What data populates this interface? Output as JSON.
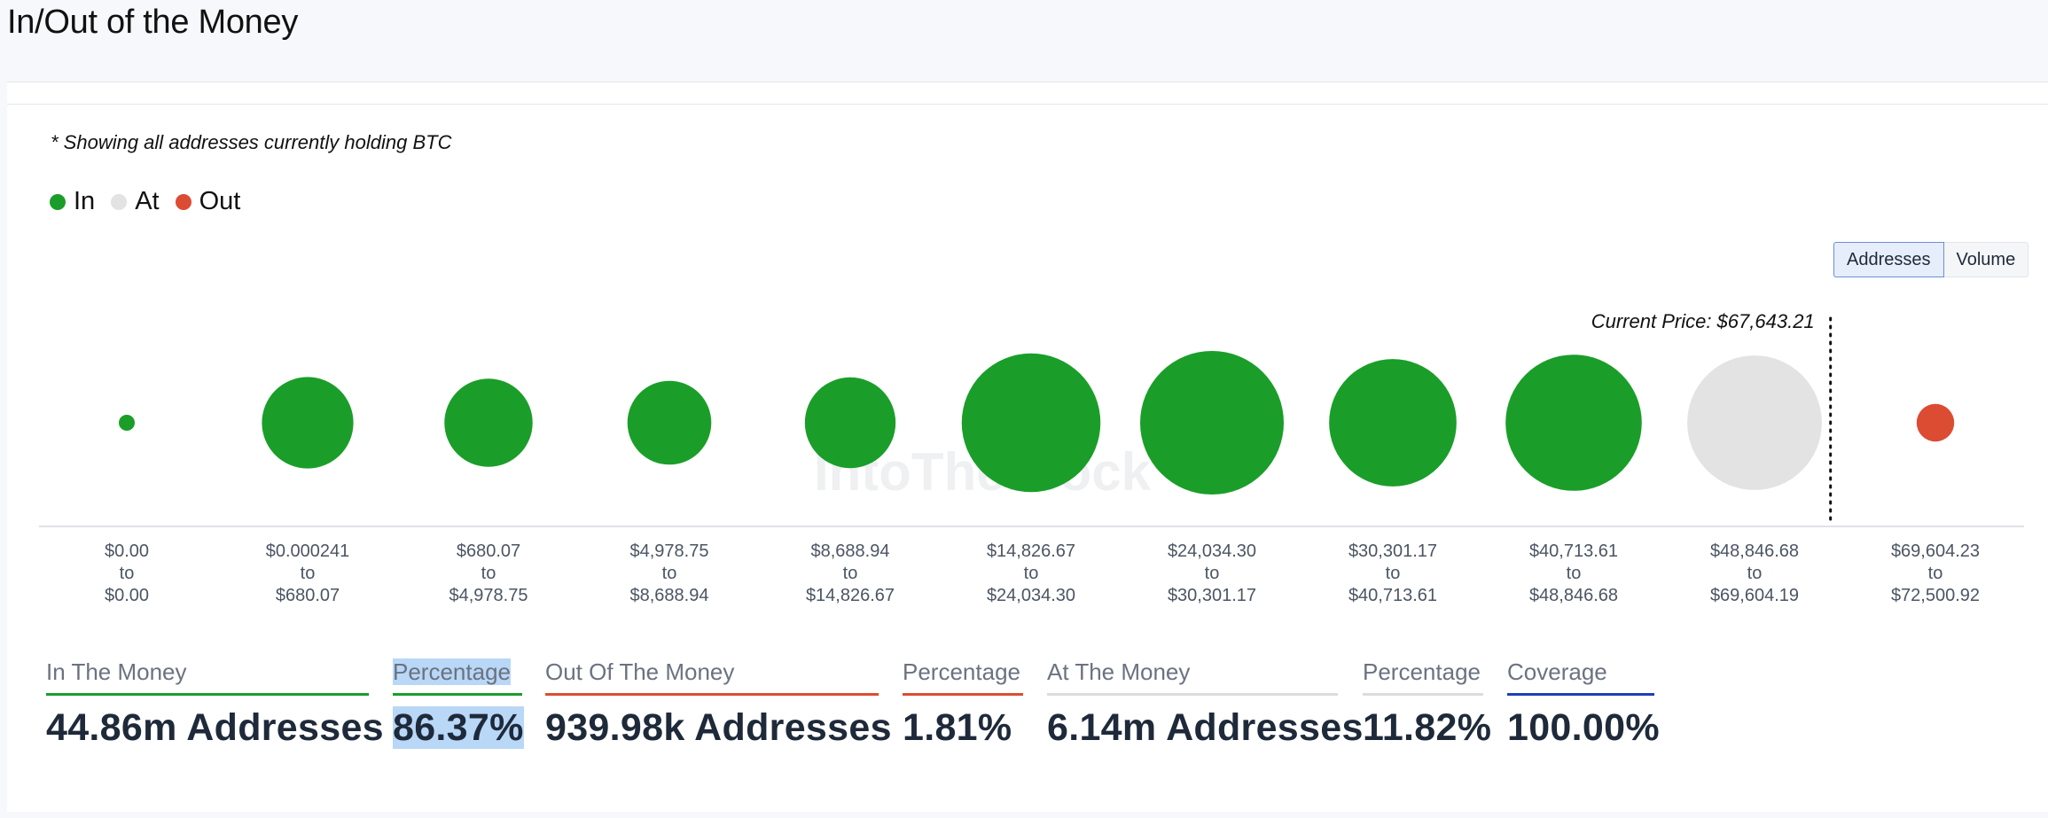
{
  "page": {
    "title": "In/Out of the Money",
    "note": "* Showing all addresses currently holding BTC"
  },
  "legend": [
    {
      "label": "In",
      "color": "#1a9e29"
    },
    {
      "label": "At",
      "color": "#e3e3e3"
    },
    {
      "label": "Out",
      "color": "#db4c33"
    }
  ],
  "toggle": {
    "addresses_label": "Addresses",
    "volume_label": "Volume",
    "selected": "Addresses"
  },
  "chart_data": {
    "type": "bubble",
    "current_price_label": "Current Price: $67,643.21",
    "watermark": "IntoTheBlock",
    "buckets": [
      {
        "from": "$0.00",
        "to": "$0.00",
        "status": "In",
        "size": 0.0236
      },
      {
        "from": "$0.000241",
        "to": "$680.07",
        "status": "In",
        "size": 0.637
      },
      {
        "from": "$680.07",
        "to": "$4,978.75",
        "status": "In",
        "size": 0.614
      },
      {
        "from": "$4,978.75",
        "to": "$8,688.94",
        "status": "In",
        "size": 0.584
      },
      {
        "from": "$8,688.94",
        "to": "$14,826.67",
        "status": "In",
        "size": 0.632
      },
      {
        "from": "$14,826.67",
        "to": "$24,034.30",
        "status": "In",
        "size": 0.966
      },
      {
        "from": "$24,034.30",
        "to": "$30,301.17",
        "status": "In",
        "size": 1.0
      },
      {
        "from": "$30,301.17",
        "to": "$40,713.61",
        "status": "In",
        "size": 0.887
      },
      {
        "from": "$40,713.61",
        "to": "$48,846.68",
        "status": "In",
        "size": 0.948
      },
      {
        "from": "$48,846.68",
        "to": "$69,604.19",
        "status": "At",
        "size": 0.937
      },
      {
        "from": "$69,604.23",
        "to": "$72,500.92",
        "status": "Out",
        "size": 0.262
      }
    ],
    "to_word": "to"
  },
  "stats": [
    {
      "label": "In The Money",
      "value": "44.86m Addresses",
      "color": "#1a9e29"
    },
    {
      "label": "Percentage",
      "value": "86.37%",
      "color": "#1a9e29"
    },
    {
      "label": "Out Of The Money",
      "value": "939.98k Addresses",
      "color": "#db4c33"
    },
    {
      "label": "Percentage",
      "value": "1.81%",
      "color": "#db4c33"
    },
    {
      "label": "At The Money",
      "value": "6.14m Addresses",
      "color": "#dcdcdc"
    },
    {
      "label": "Percentage",
      "value": "11.82%",
      "color": "#dcdcdc"
    },
    {
      "label": "Coverage",
      "value": "100.00%",
      "color": "#1f3fb8"
    }
  ]
}
